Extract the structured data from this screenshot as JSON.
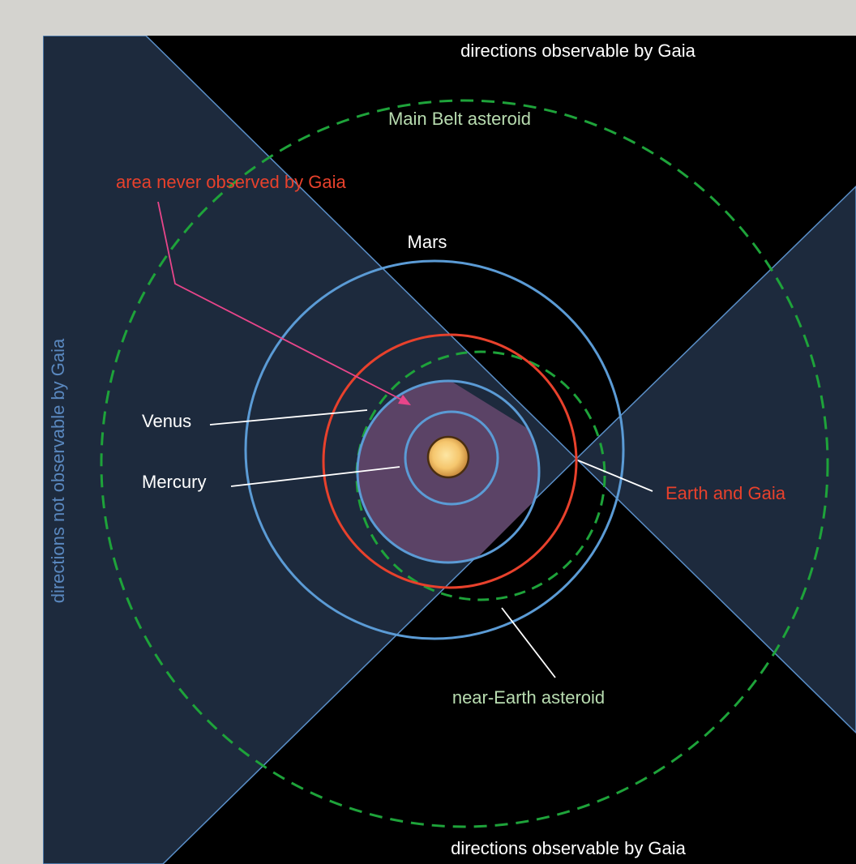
{
  "labels": {
    "top_directions": "directions observable by Gaia",
    "bottom_directions": "directions observable by Gaia",
    "side_directions": "directions not observable by Gaia",
    "main_belt": "Main Belt asteroid",
    "never_observed": "area never observed by Gaia",
    "mars": "Mars",
    "venus": "Venus",
    "mercury": "Mercury",
    "earth_gaia": "Earth and Gaia",
    "near_earth": "near-Earth asteroid"
  },
  "colors": {
    "background": "#000000",
    "page": "#d4d3cf",
    "wedge_fill": "#1d2a3d",
    "wedge_edge": "#5a8fc8",
    "orbit_blue": "#5b9bd5",
    "orbit_red": "#e8412c",
    "asteroid_green": "#1ea33a",
    "never_observed_fill": "#5b4366",
    "label_white": "#ffffff",
    "label_red": "#e8412c",
    "label_green": "#b8dcb0",
    "label_blue": "#5a88bf",
    "pointer_pink": "#e8458a",
    "sun": "#f5c66d"
  }
}
